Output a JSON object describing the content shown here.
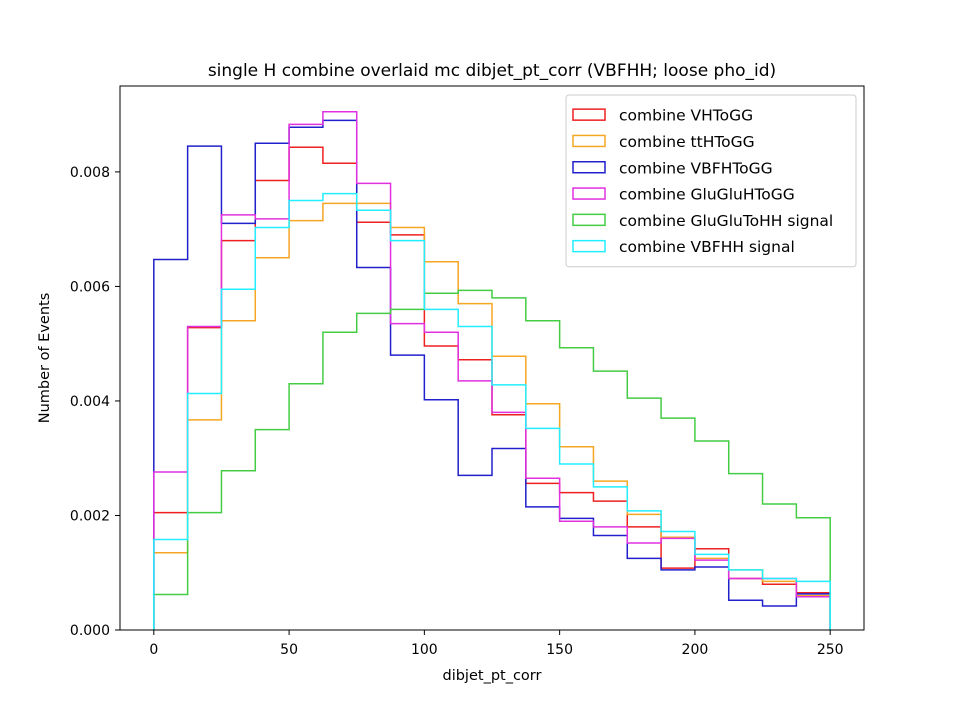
{
  "chart_data": {
    "type": "step-histogram",
    "title": "single H combine overlaid mc dibjet_pt_corr (VBFHH; loose pho_id)",
    "xlabel": "dibjet_pt_corr",
    "ylabel": "Number of Events",
    "xlim": [
      -12.5,
      262.5
    ],
    "ylim": [
      0,
      0.0095
    ],
    "xticks": [
      0,
      50,
      100,
      150,
      200,
      250
    ],
    "xtick_labels": [
      "0",
      "50",
      "100",
      "150",
      "200",
      "250"
    ],
    "yticks": [
      0,
      0.002,
      0.004,
      0.006,
      0.008
    ],
    "ytick_labels": [
      "0.000",
      "0.002",
      "0.004",
      "0.006",
      "0.008"
    ],
    "bin_edges": [
      0,
      12.5,
      25,
      37.5,
      50,
      62.5,
      75,
      87.5,
      100,
      112.5,
      125,
      137.5,
      150,
      162.5,
      175,
      187.5,
      200,
      212.5,
      225,
      237.5,
      250
    ],
    "legend_position": "upper right",
    "grid": false,
    "series": [
      {
        "name": "combine VHToGG",
        "color": "#ee2020",
        "values": [
          0.00205,
          0.00528,
          0.0068,
          0.00785,
          0.00843,
          0.00815,
          0.00712,
          0.0069,
          0.00496,
          0.00472,
          0.00376,
          0.00256,
          0.0024,
          0.00225,
          0.0018,
          0.00108,
          0.00142,
          0.0009,
          0.0008,
          0.00065
        ]
      },
      {
        "name": "combine ttHToGG",
        "color": "#f5a623",
        "values": [
          0.00135,
          0.00367,
          0.0054,
          0.0065,
          0.00715,
          0.00745,
          0.00745,
          0.00703,
          0.00643,
          0.0057,
          0.00478,
          0.00395,
          0.0032,
          0.0026,
          0.00202,
          0.00162,
          0.00125,
          0.00105,
          0.00085,
          0.0006
        ]
      },
      {
        "name": "combine VBFHToGG",
        "color": "#2020cc",
        "values": [
          0.00647,
          0.00845,
          0.0071,
          0.0085,
          0.00878,
          0.0089,
          0.00633,
          0.0048,
          0.00402,
          0.0027,
          0.00317,
          0.00215,
          0.00195,
          0.00165,
          0.00125,
          0.00105,
          0.0011,
          0.00052,
          0.00042,
          0.00063
        ]
      },
      {
        "name": "combine GluGluHToGG",
        "color": "#e030e0",
        "values": [
          0.00276,
          0.0053,
          0.00725,
          0.00718,
          0.00883,
          0.00905,
          0.0078,
          0.00535,
          0.0052,
          0.00435,
          0.0038,
          0.00265,
          0.0019,
          0.0018,
          0.00152,
          0.0016,
          0.00122,
          0.0009,
          0.0009,
          0.00058
        ]
      },
      {
        "name": "combine GluGluToHH signal",
        "color": "#44cc44",
        "values": [
          0.00062,
          0.00205,
          0.00278,
          0.0035,
          0.0043,
          0.0052,
          0.00553,
          0.0056,
          0.00588,
          0.00593,
          0.0058,
          0.0054,
          0.00493,
          0.00452,
          0.00405,
          0.0037,
          0.0033,
          0.00273,
          0.0022,
          0.00196
        ]
      },
      {
        "name": "combine VBFHH signal",
        "color": "#22eeff",
        "values": [
          0.00158,
          0.00413,
          0.00595,
          0.00703,
          0.0075,
          0.00762,
          0.00733,
          0.0068,
          0.0056,
          0.0053,
          0.00428,
          0.00352,
          0.0029,
          0.0025,
          0.00208,
          0.00172,
          0.00132,
          0.00105,
          0.0009,
          0.00085
        ]
      }
    ]
  }
}
